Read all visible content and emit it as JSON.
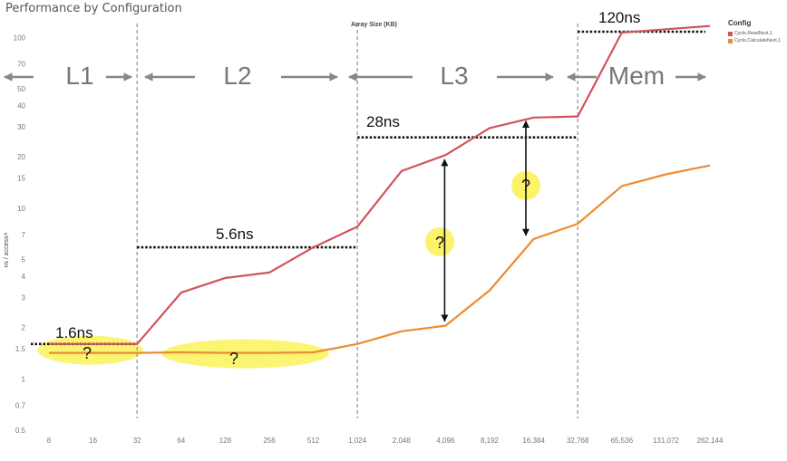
{
  "title": "Performance by Configuration",
  "x_title": "Array Size (KB)",
  "y_title": "ns / access˄",
  "legend": {
    "title": "Config",
    "items": [
      {
        "label": "Cycle,ReadNext,1",
        "color": "#d0545c"
      },
      {
        "label": "Cycle,CalculateNext,1",
        "color": "#ec8c32"
      }
    ]
  },
  "levels": [
    "L1",
    "L2",
    "L3",
    "Mem"
  ],
  "annotations": {
    "l1_latency": "1.6ns",
    "l2_latency": "5.6ns",
    "l3_latency": "28ns",
    "mem_latency": "120ns",
    "question": "?"
  },
  "chart_data": {
    "type": "line",
    "title": "Performance by Configuration",
    "xlabel": "Array Size (KB)",
    "ylabel": "ns / access",
    "y_scale": "log",
    "ylim": [
      0.5,
      140
    ],
    "yticks": [
      "0.5",
      "0.7",
      "1",
      "1.5",
      "2",
      "3",
      "4",
      "5",
      "7",
      "10",
      "15",
      "20",
      "30",
      "40",
      "50",
      "70",
      "100"
    ],
    "categories": [
      "8",
      "16",
      "32",
      "64",
      "128",
      "256",
      "512",
      "1,024",
      "2,048",
      "4,096",
      "8,192",
      "16,384",
      "32,768",
      "65,536",
      "131,072",
      "262,144"
    ],
    "series": [
      {
        "name": "Cycle,ReadNext,1",
        "color": "#d0545c",
        "values": [
          1.6,
          1.6,
          1.6,
          3.2,
          3.9,
          4.2,
          5.9,
          7.8,
          16.5,
          20.5,
          29.5,
          34,
          34.5,
          107,
          112,
          117
        ]
      },
      {
        "name": "Cycle,CalculateNext,1",
        "color": "#ec8c32",
        "values": [
          1.42,
          1.42,
          1.42,
          1.43,
          1.42,
          1.42,
          1.43,
          1.6,
          1.9,
          2.05,
          3.3,
          6.6,
          8.1,
          13.5,
          15.8,
          17.8
        ]
      }
    ],
    "boundaries_after": [
      "32",
      "1,024",
      "32,768"
    ],
    "grid": false,
    "legend_position": "top-right"
  }
}
